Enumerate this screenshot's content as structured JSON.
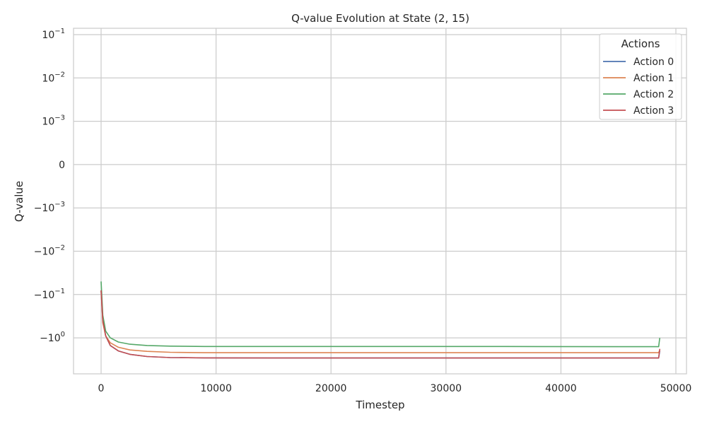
{
  "chart_data": {
    "type": "line",
    "title": "Q-value Evolution at State (2, 15)",
    "xlabel": "Timestep",
    "ylabel": "Q-value",
    "xscale": "linear",
    "yscale": "symlog",
    "xlim": [
      -2500,
      51000
    ],
    "xticks": [
      0,
      10000,
      20000,
      30000,
      40000,
      50000
    ],
    "xtick_labels": [
      "0",
      "10000",
      "20000",
      "30000",
      "40000",
      "50000"
    ],
    "yticks": [
      0.1,
      0.01,
      0.001,
      0,
      -0.001,
      -0.01,
      -0.1,
      -1
    ],
    "ytick_labels": [
      {
        "base": "10",
        "exp": "−1"
      },
      {
        "base": "10",
        "exp": "−2"
      },
      {
        "base": "10",
        "exp": "−3"
      },
      {
        "base": "0",
        "exp": ""
      },
      {
        "base": "−10",
        "exp": "−3"
      },
      {
        "base": "−10",
        "exp": "−2"
      },
      {
        "base": "−10",
        "exp": "−1"
      },
      {
        "base": "−10",
        "exp": "0"
      }
    ],
    "grid": true,
    "legend": {
      "title": "Actions",
      "placement": "top-right"
    },
    "series": [
      {
        "name": "Action 0",
        "color": "#4c72b0",
        "x": [
          0,
          150,
          400,
          800,
          1500,
          2500,
          4000,
          6000,
          9000,
          15000,
          25000,
          35000,
          45000,
          48500,
          48600
        ],
        "y": [
          -0.08,
          -0.4,
          -0.9,
          -1.5,
          -2.0,
          -2.4,
          -2.7,
          -2.85,
          -2.9,
          -2.92,
          -2.92,
          -2.92,
          -2.92,
          -2.92,
          -2.0
        ]
      },
      {
        "name": "Action 1",
        "color": "#dd8452",
        "x": [
          0,
          150,
          400,
          800,
          1500,
          2500,
          4000,
          6000,
          9000,
          15000,
          25000,
          35000,
          45000,
          48500,
          48600
        ],
        "y": [
          -0.08,
          -0.45,
          -0.9,
          -1.3,
          -1.65,
          -1.9,
          -2.05,
          -2.15,
          -2.2,
          -2.2,
          -2.2,
          -2.2,
          -2.2,
          -2.2,
          -1.9
        ]
      },
      {
        "name": "Action 2",
        "color": "#55a868",
        "x": [
          0,
          150,
          400,
          800,
          1500,
          2500,
          4000,
          6000,
          9000,
          15000,
          25000,
          35000,
          45000,
          48500,
          48600
        ],
        "y": [
          -0.05,
          -0.3,
          -0.7,
          -1.0,
          -1.25,
          -1.4,
          -1.5,
          -1.55,
          -1.58,
          -1.58,
          -1.58,
          -1.58,
          -1.6,
          -1.6,
          -1.0
        ]
      },
      {
        "name": "Action 3",
        "color": "#c44e52",
        "x": [
          0,
          150,
          400,
          800,
          1500,
          2500,
          4000,
          6000,
          9000,
          15000,
          25000,
          35000,
          45000,
          48500,
          48600
        ],
        "y": [
          -0.08,
          -0.4,
          -0.9,
          -1.5,
          -2.0,
          -2.4,
          -2.7,
          -2.85,
          -2.9,
          -2.92,
          -2.92,
          -2.92,
          -2.92,
          -2.92,
          -1.8
        ]
      }
    ]
  }
}
